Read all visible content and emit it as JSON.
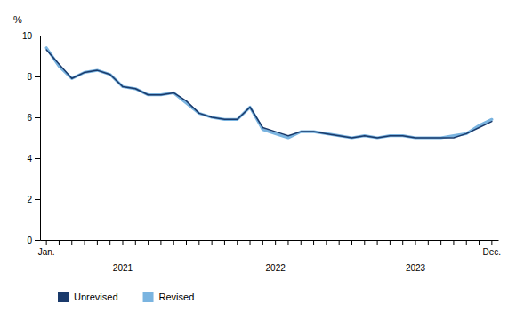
{
  "chart_data": {
    "type": "line",
    "ylabel": "%",
    "categories": [
      null,
      null,
      null,
      null,
      null,
      null,
      "2021",
      null,
      null,
      null,
      null,
      null,
      null,
      null,
      null,
      null,
      null,
      null,
      "2022",
      null,
      null,
      null,
      null,
      null,
      null,
      null,
      null,
      null,
      null,
      "2023",
      null,
      null,
      null,
      null,
      null,
      null
    ],
    "series": [
      {
        "name": "Unrevised",
        "color": "#1a3a6b",
        "values": [
          9.3,
          8.6,
          7.9,
          8.2,
          8.3,
          8.1,
          7.5,
          7.4,
          7.1,
          7.1,
          7.2,
          6.8,
          6.2,
          6.0,
          5.9,
          5.9,
          6.5,
          5.5,
          5.3,
          5.1,
          5.3,
          5.3,
          5.2,
          5.1,
          5.0,
          5.1,
          5.0,
          5.1,
          5.1,
          5.0,
          5.0,
          5.0,
          5.0,
          5.2,
          5.5,
          5.8
        ]
      },
      {
        "name": "Revised",
        "color": "#7ab4e0",
        "values": [
          9.4,
          8.5,
          7.9,
          8.2,
          8.3,
          8.1,
          7.5,
          7.4,
          7.1,
          7.1,
          7.2,
          6.7,
          6.2,
          6.0,
          5.9,
          5.9,
          6.5,
          5.4,
          5.2,
          5.0,
          5.3,
          5.3,
          5.2,
          5.1,
          5.0,
          5.1,
          5.0,
          5.1,
          5.1,
          5.0,
          5.0,
          5.0,
          5.1,
          5.2,
          5.6,
          5.9
        ]
      }
    ],
    "ylim": [
      0,
      10
    ],
    "yticks": [
      0,
      2,
      4,
      6,
      8,
      10
    ],
    "grid": false,
    "legend": "bottom",
    "annotations": [
      {
        "text": "Jan.",
        "x": 0
      },
      {
        "text": "Dec.",
        "x": 35
      }
    ]
  }
}
